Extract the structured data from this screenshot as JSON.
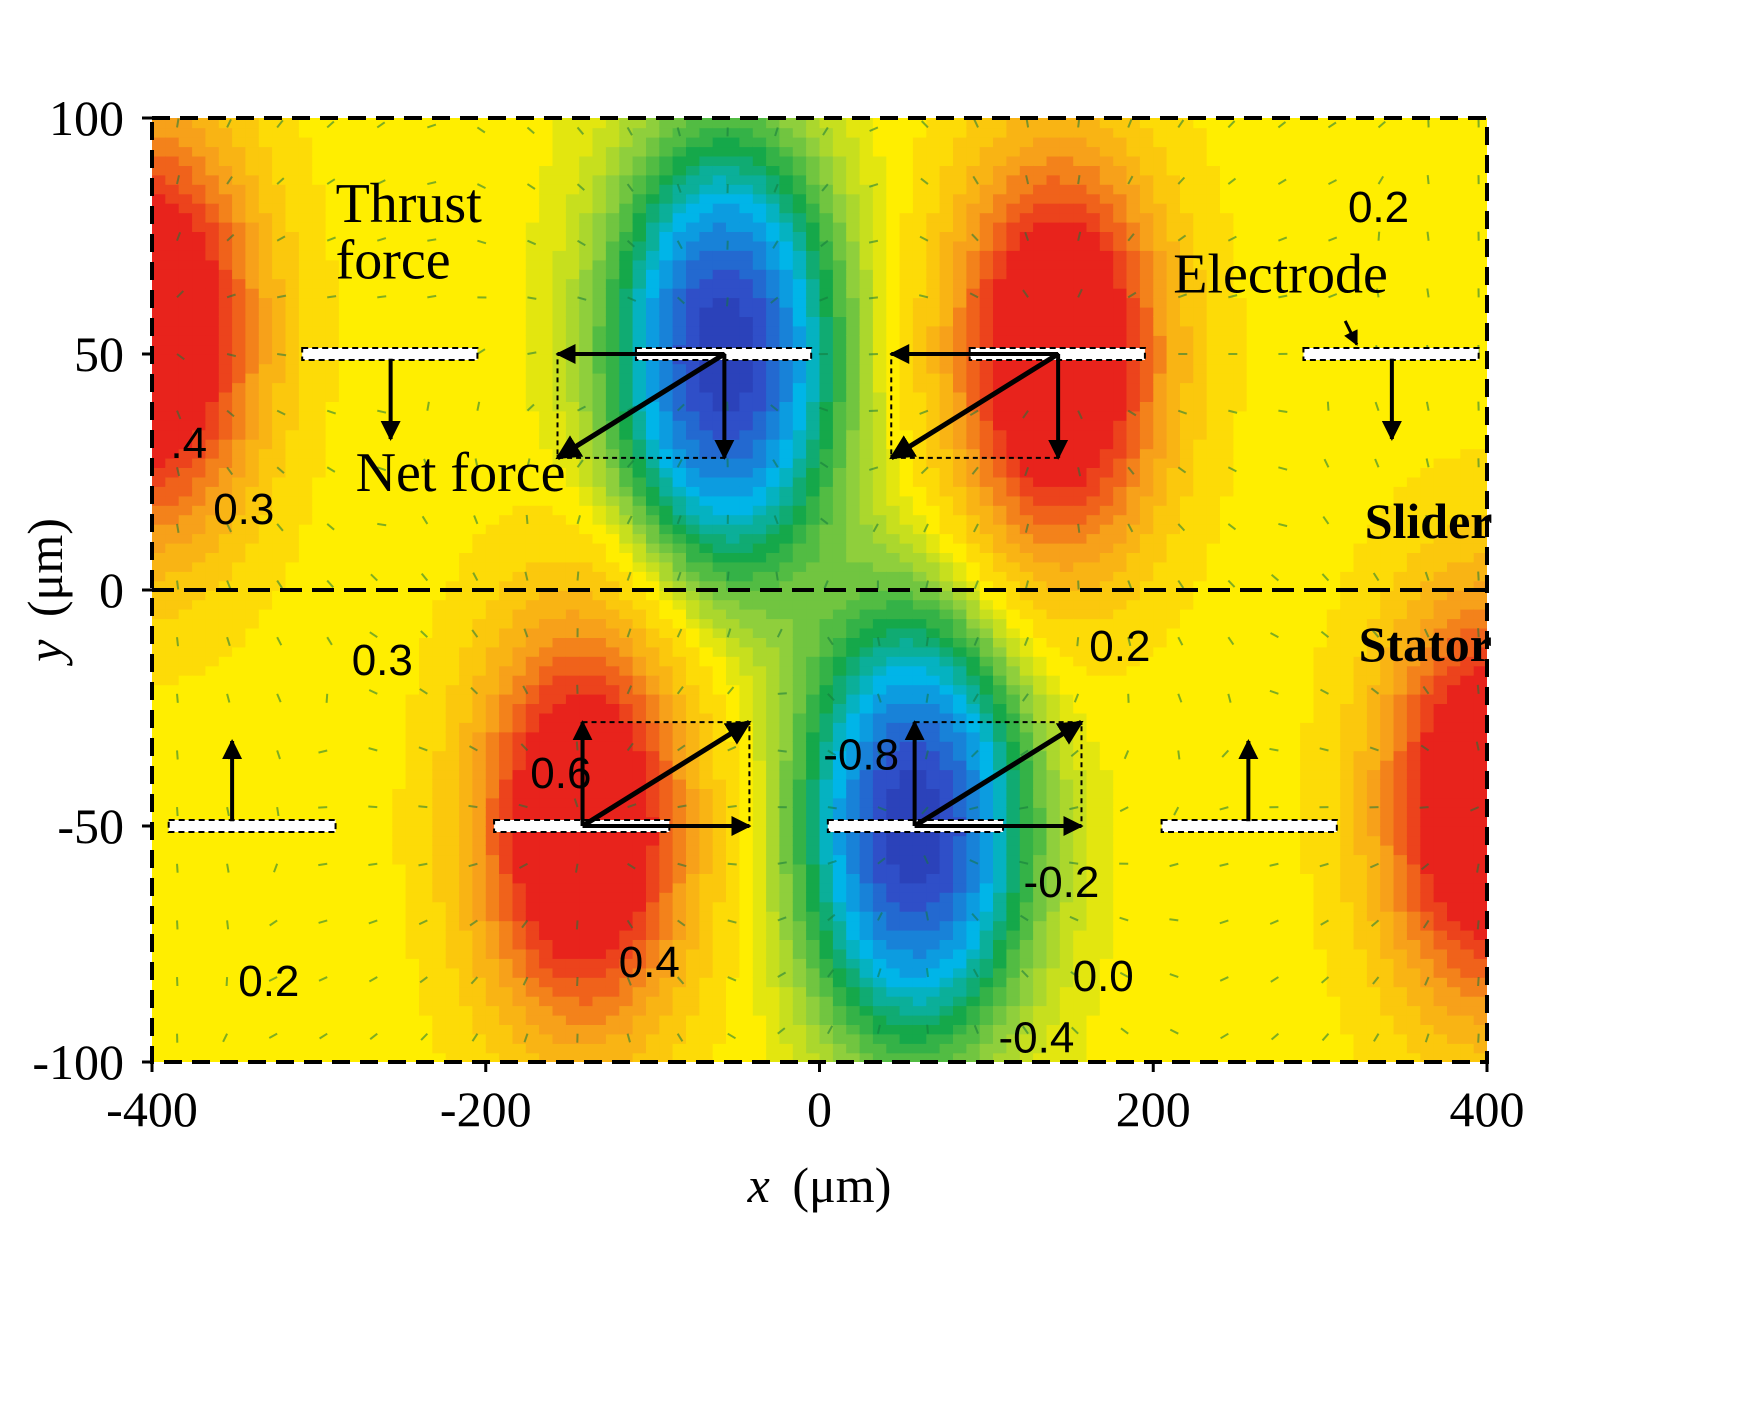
{
  "chart_data": {
    "type": "heatmap",
    "description_of_axes": {
      "xlabel_var": "x",
      "xlabel_unit": "(μm)",
      "ylabel_var": "y",
      "ylabel_unit": "(μm)"
    },
    "xlim": [
      -400,
      400
    ],
    "ylim": [
      -100,
      100
    ],
    "xticks": [
      -400,
      -200,
      0,
      200,
      400
    ],
    "yticks": [
      100,
      50,
      0,
      -50,
      -100
    ],
    "grid": false,
    "colormap": [
      "#1f1b8e",
      "#2f4fc8",
      "#00b5e8",
      "#15a84a",
      "#8fcf3c",
      "#ffee00",
      "#f7a11a",
      "#e8231c"
    ],
    "regions": [
      {
        "name": "Slider",
        "y_range": [
          0,
          100
        ]
      },
      {
        "name": "Stator",
        "y_range": [
          -100,
          0
        ]
      }
    ],
    "electrodes": [
      {
        "layer": "Slider",
        "x_range": [
          -310,
          -205
        ],
        "y": 50
      },
      {
        "layer": "Slider",
        "x_range": [
          -110,
          -5
        ],
        "y": 50
      },
      {
        "layer": "Slider",
        "x_range": [
          90,
          195
        ],
        "y": 50
      },
      {
        "layer": "Slider",
        "x_range": [
          290,
          395
        ],
        "y": 50
      },
      {
        "layer": "Stator",
        "x_range": [
          -390,
          -290
        ],
        "y": -50
      },
      {
        "layer": "Stator",
        "x_range": [
          -195,
          -90
        ],
        "y": -50
      },
      {
        "layer": "Stator",
        "x_range": [
          5,
          110
        ],
        "y": -50
      },
      {
        "layer": "Stator",
        "x_range": [
          205,
          310
        ],
        "y": -50
      }
    ],
    "potential_extrema": [
      {
        "x": -57,
        "y": 50,
        "sign": "negative"
      },
      {
        "x": 143,
        "y": 50,
        "sign": "positive"
      },
      {
        "x": -142,
        "y": -50,
        "sign": "positive"
      },
      {
        "x": 57,
        "y": -50,
        "sign": "negative"
      },
      {
        "x": -400,
        "y": 55,
        "sign": "positive"
      },
      {
        "x": 400,
        "y": -45,
        "sign": "positive"
      }
    ],
    "contour_labels": [
      {
        "text": "0.2",
        "x": 335,
        "y": 78
      },
      {
        "text": ".4",
        "x": -378,
        "y": 28
      },
      {
        "text": "0.3",
        "x": -345,
        "y": 14
      },
      {
        "text": "0.3",
        "x": -262,
        "y": -18
      },
      {
        "text": "0.2",
        "x": 180,
        "y": -15
      },
      {
        "text": "0.6",
        "x": -155,
        "y": -42
      },
      {
        "text": "-0.8",
        "x": 25,
        "y": -38
      },
      {
        "text": "-0.2",
        "x": 145,
        "y": -65
      },
      {
        "text": "0.4",
        "x": -102,
        "y": -82
      },
      {
        "text": "0.0",
        "x": 170,
        "y": -85
      },
      {
        "text": "0.2",
        "x": -330,
        "y": -86
      },
      {
        "text": "-0.4",
        "x": 130,
        "y": -98
      }
    ],
    "annotations": [
      {
        "text": "Thrust",
        "x": -290,
        "y": 78
      },
      {
        "text": "force",
        "x": -290,
        "y": 66
      },
      {
        "text": "Net force",
        "x": -278,
        "y": 21
      },
      {
        "text": "Electrode",
        "x": 212,
        "y": 63
      },
      {
        "text": "Slider",
        "x": 365,
        "y": 11
      },
      {
        "text": "Stator",
        "x": 363,
        "y": -15
      }
    ],
    "force_vectors": [
      {
        "kind": "thrust",
        "from": [
          -57,
          50
        ],
        "to": [
          -157,
          50
        ]
      },
      {
        "kind": "normal",
        "from": [
          -57,
          50
        ],
        "to": [
          -57,
          28
        ]
      },
      {
        "kind": "net",
        "from": [
          -57,
          50
        ],
        "to": [
          -157,
          28
        ]
      },
      {
        "kind": "thrust",
        "from": [
          143,
          50
        ],
        "to": [
          43,
          50
        ]
      },
      {
        "kind": "normal",
        "from": [
          143,
          50
        ],
        "to": [
          143,
          28
        ]
      },
      {
        "kind": "net",
        "from": [
          143,
          50
        ],
        "to": [
          43,
          28
        ]
      },
      {
        "kind": "normal",
        "from": [
          -257,
          49
        ],
        "to": [
          -257,
          32
        ]
      },
      {
        "kind": "normal",
        "from": [
          343,
          49
        ],
        "to": [
          343,
          32
        ]
      },
      {
        "kind": "thrust",
        "from": [
          -142,
          -50
        ],
        "to": [
          -42,
          -50
        ]
      },
      {
        "kind": "normal",
        "from": [
          -142,
          -50
        ],
        "to": [
          -142,
          -28
        ]
      },
      {
        "kind": "net",
        "from": [
          -142,
          -50
        ],
        "to": [
          -42,
          -28
        ]
      },
      {
        "kind": "thrust",
        "from": [
          57,
          -50
        ],
        "to": [
          157,
          -50
        ]
      },
      {
        "kind": "normal",
        "from": [
          57,
          -50
        ],
        "to": [
          57,
          -28
        ]
      },
      {
        "kind": "net",
        "from": [
          57,
          -50
        ],
        "to": [
          157,
          -28
        ]
      },
      {
        "kind": "normal",
        "from": [
          -352,
          -49
        ],
        "to": [
          -352,
          -32
        ]
      },
      {
        "kind": "normal",
        "from": [
          257,
          -49
        ],
        "to": [
          257,
          -32
        ]
      }
    ],
    "force_boxes": [
      {
        "x_range": [
          -157,
          -57
        ],
        "y_range": [
          28,
          50
        ]
      },
      {
        "x_range": [
          43,
          143
        ],
        "y_range": [
          28,
          50
        ]
      },
      {
        "x_range": [
          -142,
          -42
        ],
        "y_range": [
          -50,
          -28
        ]
      },
      {
        "x_range": [
          57,
          157
        ],
        "y_range": [
          -50,
          -28
        ]
      }
    ]
  }
}
